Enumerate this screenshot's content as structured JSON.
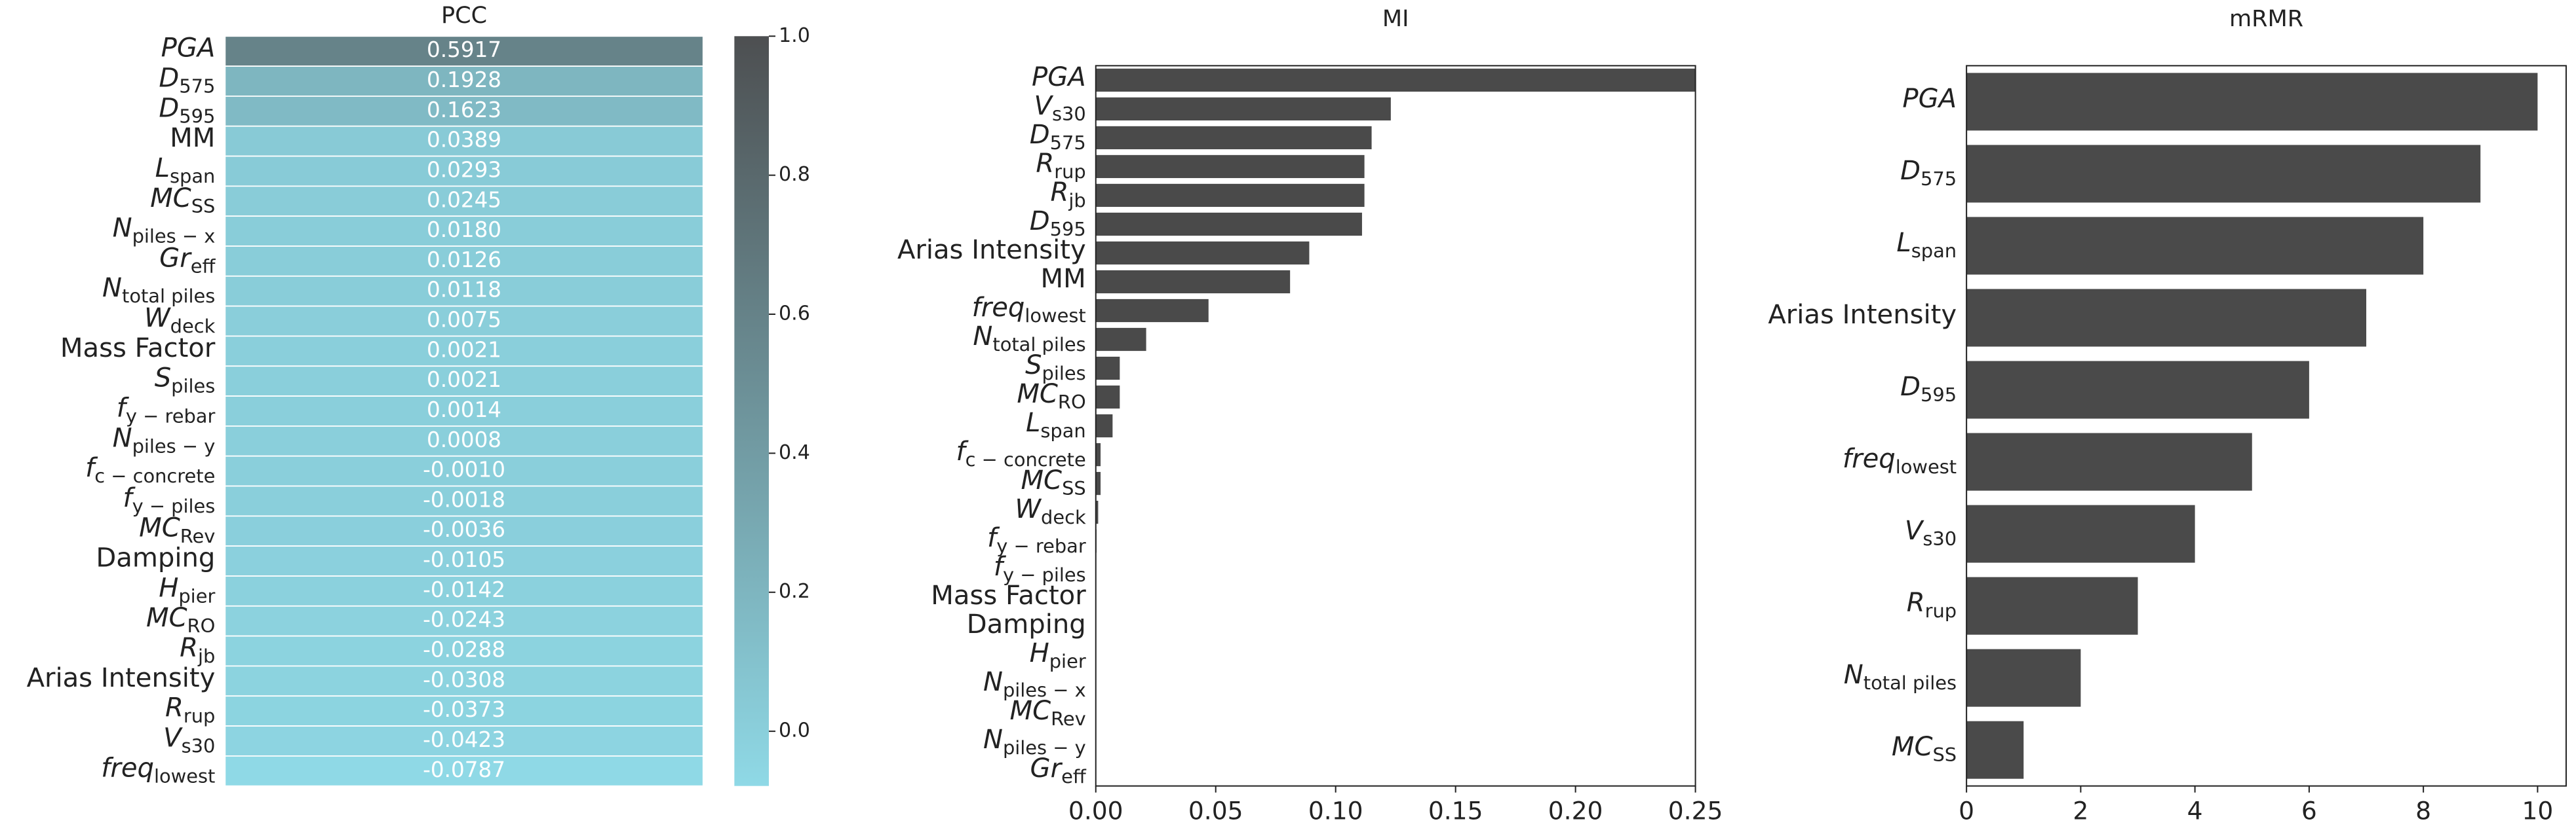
{
  "chart_data": [
    {
      "type": "heatmap",
      "title": "PCC",
      "categories": [
        {
          "text": "PGA",
          "italic": true
        },
        {
          "text": "D",
          "sub": "575",
          "italic": true
        },
        {
          "text": "D",
          "sub": "595",
          "italic": true
        },
        {
          "text": "MM"
        },
        {
          "text": "L",
          "sub": "span",
          "italic": true
        },
        {
          "text": "MC",
          "sub": "SS",
          "italic": true
        },
        {
          "text": "N",
          "sub": "piles − x",
          "italic": true
        },
        {
          "text": "Gr",
          "sub": "eff",
          "italic": true
        },
        {
          "text": "N",
          "sub": "total piles",
          "italic": true
        },
        {
          "text": "W",
          "sub": "deck",
          "italic": true
        },
        {
          "text": "Mass Factor"
        },
        {
          "text": "S",
          "sub": "piles",
          "italic": true
        },
        {
          "text": "f",
          "sub": "y − rebar",
          "italic": true
        },
        {
          "text": "N",
          "sub": "piles − y",
          "italic": true
        },
        {
          "text": "f",
          "sub": "c − concrete",
          "italic": true
        },
        {
          "text": "f",
          "sub": "y − piles",
          "italic": true
        },
        {
          "text": "MC",
          "sub": "Rev",
          "italic": true
        },
        {
          "text": "Damping"
        },
        {
          "text": "H",
          "sub": "pier",
          "italic": true
        },
        {
          "text": "MC",
          "sub": "RO",
          "italic": true
        },
        {
          "text": "R",
          "sub": "jb",
          "italic": true
        },
        {
          "text": "Arias Intensity"
        },
        {
          "text": "R",
          "sub": "rup",
          "italic": true
        },
        {
          "text": "V",
          "sub": "s30",
          "italic": true
        },
        {
          "text": "freq",
          "sub": "lowest",
          "italic": true
        }
      ],
      "values": [
        0.5917,
        0.1928,
        0.1623,
        0.0389,
        0.0293,
        0.0245,
        0.018,
        0.0126,
        0.0118,
        0.0075,
        0.0021,
        0.0021,
        0.0014,
        0.0008,
        -0.001,
        -0.0018,
        -0.0036,
        -0.0105,
        -0.0142,
        -0.0243,
        -0.0288,
        -0.0308,
        -0.0373,
        -0.0423,
        -0.0787
      ],
      "value_labels": [
        "0.5917",
        "0.1928",
        "0.1623",
        "0.0389",
        "0.0293",
        "0.0245",
        "0.0180",
        "0.0126",
        "0.0118",
        "0.0075",
        "0.0021",
        "0.0021",
        "0.0014",
        "0.0008",
        "-0.0010",
        "-0.0018",
        "-0.0036",
        "-0.0105",
        "-0.0142",
        "-0.0243",
        "-0.0288",
        "-0.0308",
        "-0.0373",
        "-0.0423",
        "-0.0787"
      ],
      "colormap": [
        "#8fd9e6",
        "#4d4f51"
      ],
      "clim": [
        -0.0787,
        1
      ],
      "cticks": [
        {
          "value": 0,
          "label": "0.0"
        },
        0.2,
        0.4,
        0.6,
        0.8,
        {
          "value": 1,
          "label": "1.0"
        }
      ]
    },
    {
      "type": "barh",
      "title": "MI",
      "categories": [
        {
          "text": "PGA",
          "italic": true
        },
        {
          "text": "V",
          "sub": "s30",
          "italic": true
        },
        {
          "text": "D",
          "sub": "575",
          "italic": true
        },
        {
          "text": "R",
          "sub": "rup",
          "italic": true
        },
        {
          "text": "R",
          "sub": "jb",
          "italic": true
        },
        {
          "text": "D",
          "sub": "595",
          "italic": true
        },
        {
          "text": "Arias Intensity"
        },
        {
          "text": "MM"
        },
        {
          "text": "freq",
          "sub": "lowest",
          "italic": true
        },
        {
          "text": "N",
          "sub": "total piles",
          "italic": true
        },
        {
          "text": "S",
          "sub": "piles",
          "italic": true
        },
        {
          "text": "MC",
          "sub": "RO",
          "italic": true
        },
        {
          "text": "L",
          "sub": "span",
          "italic": true
        },
        {
          "text": "f",
          "sub": "c − concrete",
          "italic": true
        },
        {
          "text": "MC",
          "sub": "SS",
          "italic": true
        },
        {
          "text": "W",
          "sub": "deck",
          "italic": true
        },
        {
          "text": "f",
          "sub": "y − rebar",
          "italic": true
        },
        {
          "text": "f",
          "sub": "y − piles",
          "italic": true
        },
        {
          "text": "Mass Factor"
        },
        {
          "text": "Damping"
        },
        {
          "text": "H",
          "sub": "pier",
          "italic": true
        },
        {
          "text": "N",
          "sub": "piles − x",
          "italic": true
        },
        {
          "text": "MC",
          "sub": "Rev",
          "italic": true
        },
        {
          "text": "N",
          "sub": "piles − y",
          "italic": true
        },
        {
          "text": "Gr",
          "sub": "eff",
          "italic": true
        }
      ],
      "values": [
        0.25,
        0.123,
        0.115,
        0.112,
        0.112,
        0.111,
        0.089,
        0.081,
        0.047,
        0.021,
        0.01,
        0.01,
        0.007,
        0.002,
        0.002,
        0.001,
        0.0003,
        0,
        0,
        0,
        0,
        0,
        0,
        0,
        0
      ],
      "color": "#4a4a4a",
      "xlim": [
        0,
        0.25
      ],
      "xticks": [
        {
          "value": 0,
          "label": "0.00"
        },
        0.05,
        {
          "value": 0.1,
          "label": "0.10"
        },
        0.15,
        {
          "value": 0.2,
          "label": "0.20"
        },
        0.25
      ]
    },
    {
      "type": "barh",
      "title": "mRMR",
      "categories": [
        {
          "text": "PGA",
          "italic": true
        },
        {
          "text": "D",
          "sub": "575",
          "italic": true
        },
        {
          "text": "L",
          "sub": "span",
          "italic": true
        },
        {
          "text": "Arias Intensity"
        },
        {
          "text": "D",
          "sub": "595",
          "italic": true
        },
        {
          "text": "freq",
          "sub": "lowest",
          "italic": true
        },
        {
          "text": "V",
          "sub": "s30",
          "italic": true
        },
        {
          "text": "R",
          "sub": "rup",
          "italic": true
        },
        {
          "text": "N",
          "sub": "total piles",
          "italic": true
        },
        {
          "text": "MC",
          "sub": "SS",
          "italic": true
        }
      ],
      "values": [
        10,
        9,
        8,
        7,
        6,
        5,
        4,
        3,
        2,
        1
      ],
      "color": "#4a4a4a",
      "xlim": [
        0,
        10.5
      ],
      "xticks": [
        0,
        2,
        4,
        6,
        8,
        10
      ]
    }
  ]
}
